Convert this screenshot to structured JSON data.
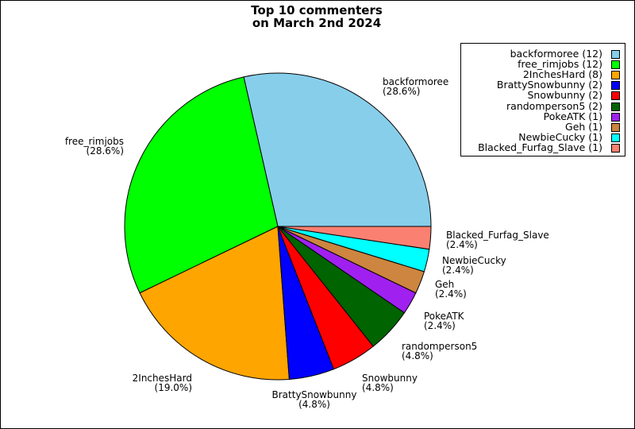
{
  "chart_data": {
    "type": "pie",
    "title_lines": [
      "Top 10 commenters",
      "on March 2nd 2024"
    ],
    "slices": [
      {
        "name": "backformoree",
        "count": 12,
        "percent": "(28.6%)",
        "legend": "backformoree (12)",
        "color": "#87CEEB"
      },
      {
        "name": "free_rimjobs",
        "count": 12,
        "percent": "(28.6%)",
        "legend": "free_rimjobs (12)",
        "color": "#00FF00"
      },
      {
        "name": "2InchesHard",
        "count": 8,
        "percent": "(19.0%)",
        "legend": "2InchesHard (8)",
        "color": "#FFA500"
      },
      {
        "name": "BrattySnowbunny",
        "count": 2,
        "percent": "(4.8%)",
        "legend": "BrattySnowbunny (2)",
        "color": "#0000FF"
      },
      {
        "name": "Snowbunny",
        "count": 2,
        "percent": "(4.8%)",
        "legend": "Snowbunny (2)",
        "color": "#FF0000"
      },
      {
        "name": "randomperson5",
        "count": 2,
        "percent": "(4.8%)",
        "legend": "randomperson5 (2)",
        "color": "#006400"
      },
      {
        "name": "PokeATK",
        "count": 1,
        "percent": "(2.4%)",
        "legend": "PokeATK (1)",
        "color": "#A020F0"
      },
      {
        "name": "Geh",
        "count": 1,
        "percent": "(2.4%)",
        "legend": "Geh (1)",
        "color": "#CD853F"
      },
      {
        "name": "NewbieCucky",
        "count": 1,
        "percent": "(2.4%)",
        "legend": "NewbieCucky (1)",
        "color": "#00FFFF"
      },
      {
        "name": "Blacked_Furfag_Slave",
        "count": 1,
        "percent": "(2.4%)",
        "legend": "Blacked_Furfag_Slave (1)",
        "color": "#FA8072"
      }
    ],
    "legend_position": "top-right"
  }
}
